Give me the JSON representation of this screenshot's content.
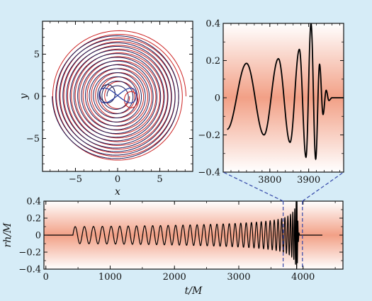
{
  "chart_data": [
    {
      "type": "line",
      "panel": "orbit",
      "xlabel": "x",
      "ylabel": "y",
      "xlim": [
        -8.9,
        8.9
      ],
      "ylim": [
        -8.9,
        8.9
      ],
      "xticks": [
        -5,
        0,
        5
      ],
      "yticks": [
        -5,
        0,
        5
      ],
      "xtick_labels": [
        "−5",
        "0",
        "5"
      ],
      "ytick_labels": [
        "−5",
        "0",
        "5"
      ],
      "series": [
        {
          "color": "#cc2222",
          "r_start": 8.0,
          "r_end": 1.3,
          "turns": 14
        },
        {
          "color": "#1a1a55",
          "r_start": 7.6,
          "r_end": 1.1,
          "turns": 14
        }
      ],
      "colors": {
        "star_a": "#cc2222",
        "star_b": "#1a1a55",
        "remnant": "#2b3fa3"
      },
      "grid": false
    },
    {
      "type": "line",
      "panel": "zoom",
      "xlim": [
        3680,
        3990
      ],
      "ylim": [
        -0.4,
        0.4
      ],
      "xticks": [
        3800,
        3900
      ],
      "yticks": [
        -0.4,
        -0.2,
        0,
        0.2,
        0.4
      ],
      "xtick_labels": [
        "3800",
        "3900"
      ],
      "ytick_labels": [
        "−0.4",
        "−0.2",
        "0",
        "0.2",
        "0.4"
      ],
      "peaks": [
        {
          "t": 3690,
          "v": -0.17
        },
        {
          "t": 3740,
          "v": 0.185
        },
        {
          "t": 3785,
          "v": -0.2
        },
        {
          "t": 3822,
          "v": 0.21
        },
        {
          "t": 3852,
          "v": -0.24
        },
        {
          "t": 3876,
          "v": 0.26
        },
        {
          "t": 3893,
          "v": -0.32
        },
        {
          "t": 3906,
          "v": 0.4
        },
        {
          "t": 3918,
          "v": -0.33
        },
        {
          "t": 3928,
          "v": 0.18
        },
        {
          "t": 3937,
          "v": -0.09
        },
        {
          "t": 3945,
          "v": 0.04
        },
        {
          "t": 3952,
          "v": -0.015
        },
        {
          "t": 3960,
          "v": 0.0
        }
      ],
      "grid": false
    },
    {
      "type": "line",
      "panel": "full",
      "xlabel": "t/M",
      "ylabel": "rh/M",
      "xlim": [
        -30,
        4620
      ],
      "ylim": [
        -0.4,
        0.4
      ],
      "xticks": [
        0,
        1000,
        2000,
        3000,
        4000
      ],
      "yticks": [
        -0.4,
        -0.2,
        0,
        0.2,
        0.4
      ],
      "xtick_labels": [
        "0",
        "1000",
        "2000",
        "3000",
        "4000"
      ],
      "ytick_labels": [
        "−0.4",
        "−0.2",
        "0",
        "0.2",
        "0.4"
      ],
      "signal_start": 420,
      "merger": 3906,
      "signal_end": 4300,
      "initial_period": 145,
      "initial_amplitude": 0.1,
      "zoom_window": [
        3690,
        3990
      ],
      "grid": false
    }
  ],
  "style": {
    "background": "#d6ecf7",
    "band_center": "#f2a086",
    "band_edge": "#ffffff",
    "trace": "#000000",
    "connector": "#3346a8"
  }
}
